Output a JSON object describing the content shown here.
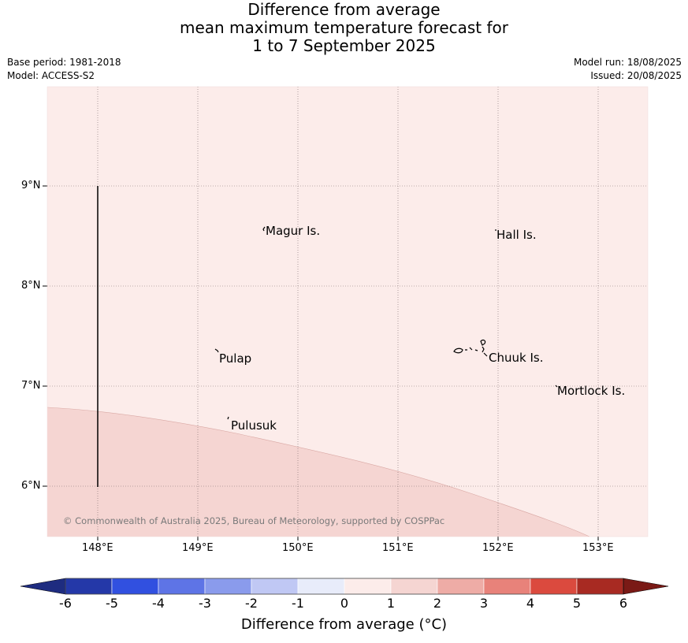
{
  "title": {
    "line1": "Difference from average",
    "line2": "mean maximum temperature forecast for",
    "line3": "1 to 7 September 2025"
  },
  "meta": {
    "base_period": "Base period: 1981-2018",
    "model": "Model: ACCESS-S2",
    "model_run": "Model run: 18/08/2025",
    "issued": "Issued: 20/08/2025"
  },
  "axes": {
    "lat_labels": [
      "9°N",
      "8°N",
      "7°N",
      "6°N"
    ],
    "lon_labels": [
      "148°E",
      "149°E",
      "150°E",
      "151°E",
      "152°E",
      "153°E"
    ]
  },
  "places": {
    "magur": "Magur Is.",
    "hall": "Hall Is.",
    "pulap": "Pulap",
    "chuuk": "Chuuk Is.",
    "mortlock": "Mortlock Is.",
    "pulusuk": "Pulusuk"
  },
  "copyright": "© Commonwealth of Australia 2025, Bureau of Meteorology, supported by COSPPac",
  "colorbar": {
    "label": "Difference from average (°C)",
    "ticks": [
      "-6",
      "-5",
      "-4",
      "-3",
      "-2",
      "-1",
      "0",
      "1",
      "2",
      "3",
      "4",
      "5",
      "6"
    ],
    "colors": [
      "#2438a8",
      "#3150e0",
      "#5e74e6",
      "#8a9bec",
      "#c0c8f4",
      "#e8ecfa",
      "#fcecea",
      "#f5d5d2",
      "#eeaca6",
      "#e8827a",
      "#db4a3e",
      "#a82a22"
    ],
    "under_color": "#1e2c80",
    "over_color": "#7a1a16"
  },
  "map_fill": {
    "main_color": "#fcecea",
    "south_color": "#f5d5d2",
    "main_range": "0 to 1",
    "south_range": "1 to 2"
  }
}
